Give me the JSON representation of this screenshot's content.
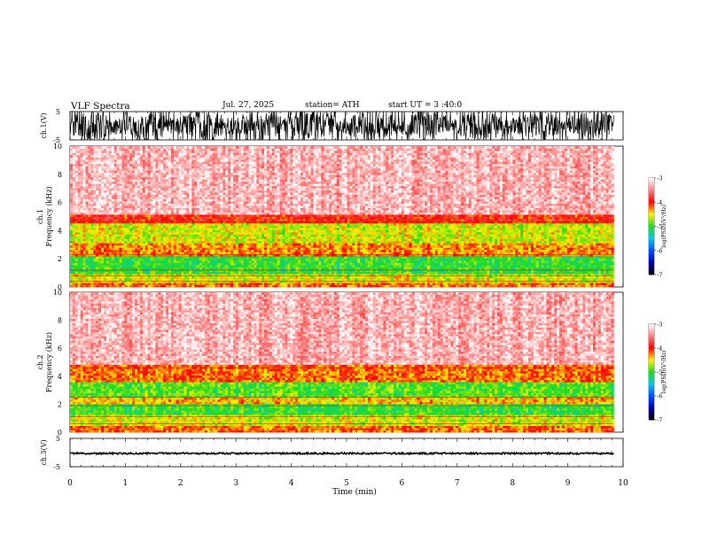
{
  "header": {
    "title": "VLF  Spectra",
    "date": "Jul.  27, 2025",
    "station": "station= ATH",
    "start": "start  UT  =   3 :40:0"
  },
  "colors": {
    "background": "#ffffff",
    "axis": "#000000",
    "trace": "#000000",
    "spectrogram_high": "#ff0000",
    "spectrogram_mid": "#ffee00",
    "spectrogram_low": "#22dd22"
  },
  "chart_data": [
    {
      "type": "line",
      "name": "ch1-waveform",
      "ylabel": "ch.1(V)",
      "ylim": [
        -5,
        5
      ],
      "y_ticks": [
        "5",
        "-5"
      ],
      "x_range_min": [
        0,
        9.83
      ],
      "amplitude_range_v": [
        -5,
        5
      ]
    },
    {
      "type": "heatmap",
      "name": "ch1-spectrogram",
      "ylabel": "ch.1\nFrequency (kHz)",
      "ylim": [
        0,
        10
      ],
      "y_ticks": [
        "0",
        "2",
        "4",
        "6",
        "8",
        "10"
      ],
      "x_range_min": [
        0,
        9.83
      ],
      "colorbar": {
        "label": "log(PSD)(V²/Hz)",
        "range": [
          -7,
          -3
        ],
        "ticks": [
          "-3",
          "-4",
          "-5",
          "-6",
          "-7"
        ]
      },
      "bands_khz": [
        {
          "from": 0,
          "to": 0.3,
          "level": -4.2
        },
        {
          "from": 0.3,
          "to": 0.9,
          "level": -4.6
        },
        {
          "from": 0.9,
          "to": 2.2,
          "level": -5.0
        },
        {
          "from": 2.2,
          "to": 3.2,
          "level": -4.3
        },
        {
          "from": 3.2,
          "to": 4.6,
          "level": -4.6
        },
        {
          "from": 4.6,
          "to": 5.2,
          "level": -4.0
        },
        {
          "from": 5.2,
          "to": 10,
          "level": -3.3
        }
      ]
    },
    {
      "type": "heatmap",
      "name": "ch2-spectrogram",
      "ylabel": "ch.2\nFrequency (kHz)",
      "ylim": [
        0,
        10
      ],
      "y_ticks": [
        "0",
        "2",
        "4",
        "6",
        "8",
        "10"
      ],
      "x_range_min": [
        0,
        9.83
      ],
      "colorbar": {
        "label": "log(PSD)(V²/Hz)",
        "range": [
          -7,
          -3
        ],
        "ticks": [
          "-3",
          "-4",
          "-5",
          "-6",
          "-7"
        ]
      },
      "bands_khz": [
        {
          "from": 0,
          "to": 0.5,
          "level": -4.2
        },
        {
          "from": 0.5,
          "to": 1.2,
          "level": -4.6
        },
        {
          "from": 1.2,
          "to": 2.0,
          "level": -5.0
        },
        {
          "from": 2.0,
          "to": 2.5,
          "level": -4.4
        },
        {
          "from": 2.5,
          "to": 3.6,
          "level": -4.9
        },
        {
          "from": 3.6,
          "to": 4.8,
          "level": -4.2
        },
        {
          "from": 4.8,
          "to": 10,
          "level": -3.3
        }
      ]
    },
    {
      "type": "line",
      "name": "ch3-waveform",
      "ylabel": "ch.3(V)",
      "ylim": [
        -5,
        5
      ],
      "y_ticks": [
        "5",
        "-5"
      ],
      "x_range_min": [
        0,
        9.83
      ],
      "amplitude_range_v": [
        -0.3,
        0.3
      ],
      "offset_v": -0.3
    }
  ],
  "xaxis": {
    "label": "Time  (min)",
    "xlim": [
      0,
      10
    ],
    "ticks": [
      "0",
      "1",
      "2",
      "3",
      "4",
      "5",
      "6",
      "7",
      "8",
      "9",
      "10"
    ]
  }
}
